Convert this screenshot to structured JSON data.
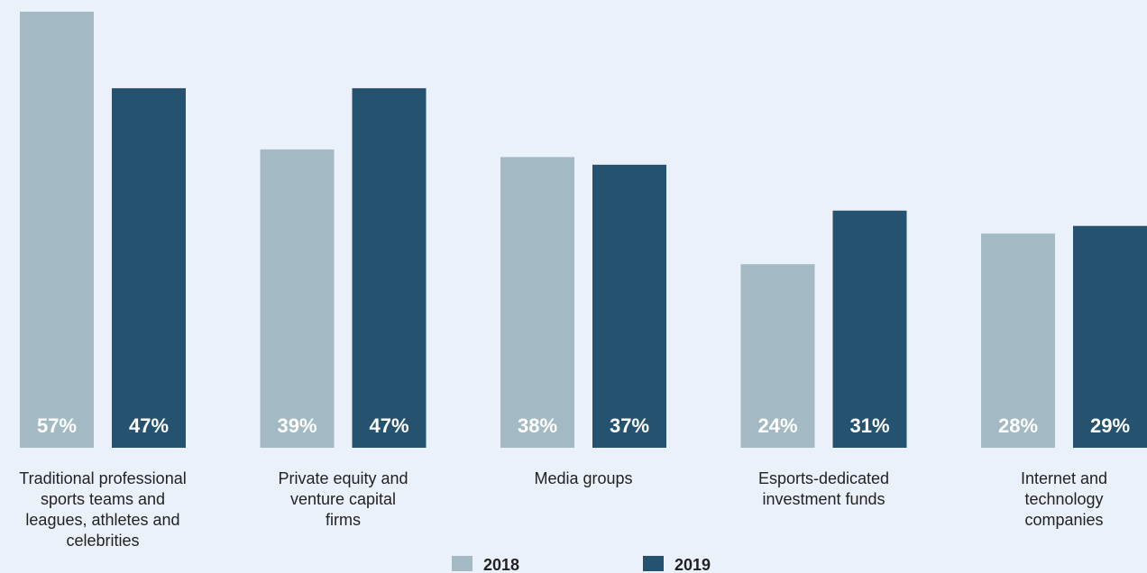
{
  "chart_data": {
    "type": "bar",
    "categories": [
      [
        "Traditional professional",
        "sports teams and",
        "leagues, athletes and",
        "celebrities"
      ],
      [
        "Private equity and",
        "venture capital",
        "firms"
      ],
      [
        "Media groups"
      ],
      [
        "Esports-dedicated",
        "investment funds"
      ],
      [
        "Internet and",
        "technology",
        "companies"
      ]
    ],
    "series": [
      {
        "name": "2018",
        "values": [
          57,
          39,
          38,
          24,
          28
        ],
        "labels": [
          "57%",
          "39%",
          "38%",
          "24%",
          "28%"
        ],
        "color": "#a3bac4"
      },
      {
        "name": "2019",
        "values": [
          47,
          47,
          37,
          31,
          29
        ],
        "labels": [
          "47%",
          "47%",
          "37%",
          "31%",
          "29%"
        ],
        "color": "#24526f"
      }
    ],
    "ylim": [
      0,
      57
    ],
    "grid": false,
    "legend_position": "bottom-center"
  }
}
